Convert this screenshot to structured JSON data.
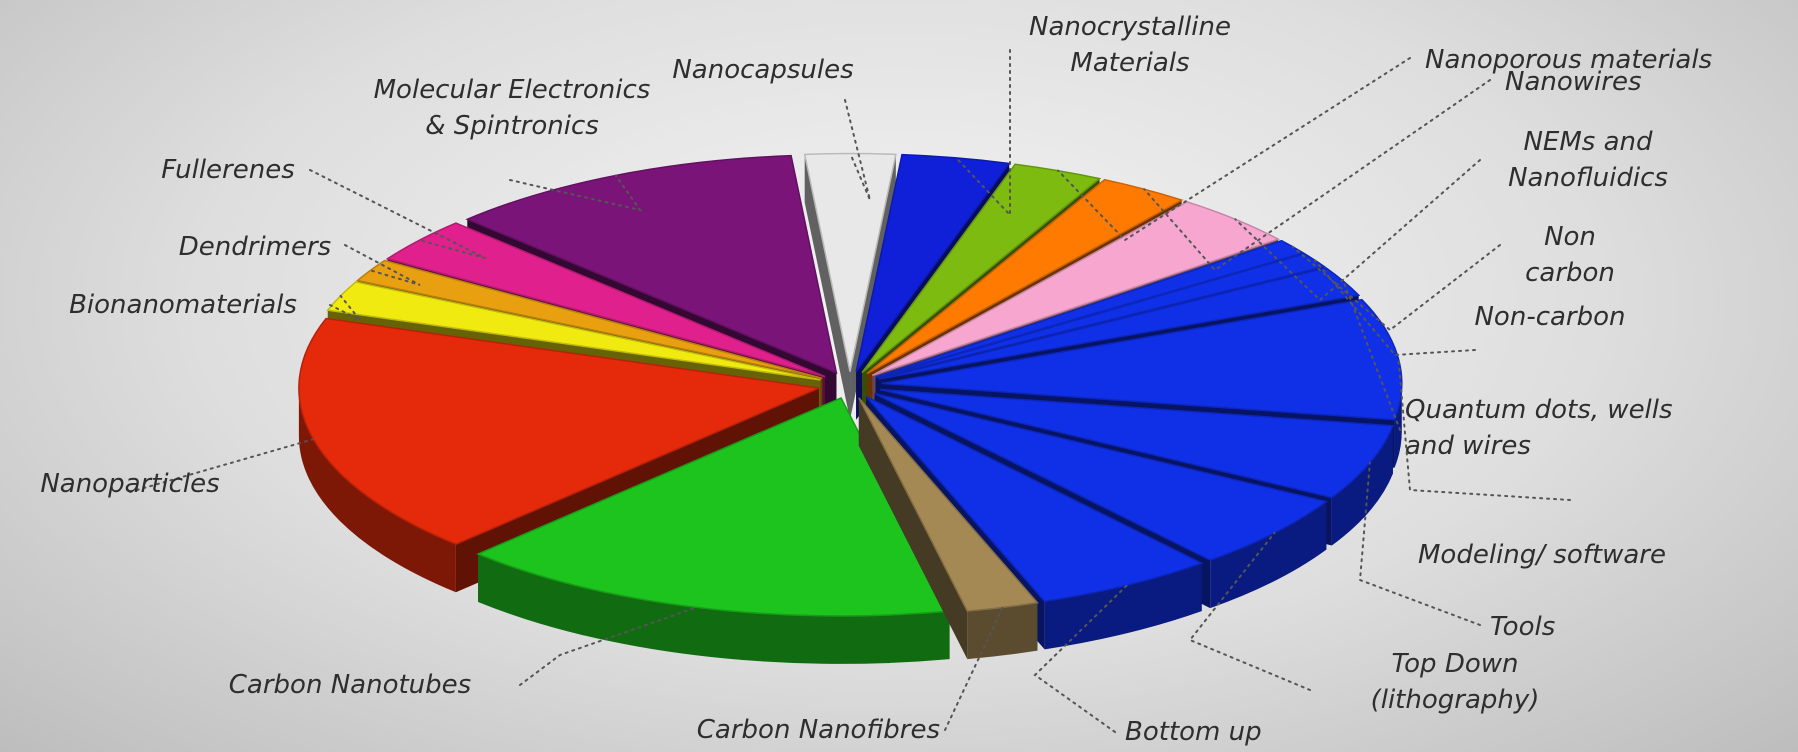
{
  "chart_data": {
    "type": "pie",
    "title": "",
    "style": "3d exploded pie",
    "slices": [
      {
        "label": "Nanocapsules",
        "value": 2.5,
        "color": "#e8e8e8"
      },
      {
        "label": "Nanocrystalline Materials",
        "value": 3.0,
        "color": "#1020d8"
      },
      {
        "label": "Nanoporous materials",
        "value": 2.5,
        "color": "#7dbb10"
      },
      {
        "label": "Nanowires",
        "value": 2.5,
        "color": "#ff7a00"
      },
      {
        "label": "NEMs and Nanofluidics",
        "value": 3.5,
        "color": "#f7a6cf"
      },
      {
        "label": "Non carbon",
        "value": 1.0,
        "color": "#1030e8"
      },
      {
        "label": "Non-carbon",
        "value": 1.0,
        "color": "#1030e8"
      },
      {
        "label": "Quantum dots, wells and wires",
        "value": 2.0,
        "color": "#1030e8"
      },
      {
        "label": "Modeling/ software",
        "value": 8.0,
        "color": "#1030e8"
      },
      {
        "label": "Tools",
        "value": 5.0,
        "color": "#1030e8"
      },
      {
        "label": "Top Down (lithography)",
        "value": 5.0,
        "color": "#1030e8"
      },
      {
        "label": "Bottom up",
        "value": 5.0,
        "color": "#1030e8"
      },
      {
        "label": "Carbon Nanofibres",
        "value": 2.0,
        "color": "#a58955"
      },
      {
        "label": "Carbon Nanotubes",
        "value": 14.0,
        "color": "#1ec41e"
      },
      {
        "label": "Nanoparticles",
        "value": 16.0,
        "color": "#e42a0a"
      },
      {
        "label": "Bionanomaterials",
        "value": 2.0,
        "color": "#f0ea10"
      },
      {
        "label": "Dendrimers",
        "value": 1.5,
        "color": "#e8a010"
      },
      {
        "label": "Fullerenes",
        "value": 3.0,
        "color": "#e0208c"
      },
      {
        "label": "Molecular Electronics & Spintronics",
        "value": 10.0,
        "color": "#7a1478"
      }
    ]
  }
}
